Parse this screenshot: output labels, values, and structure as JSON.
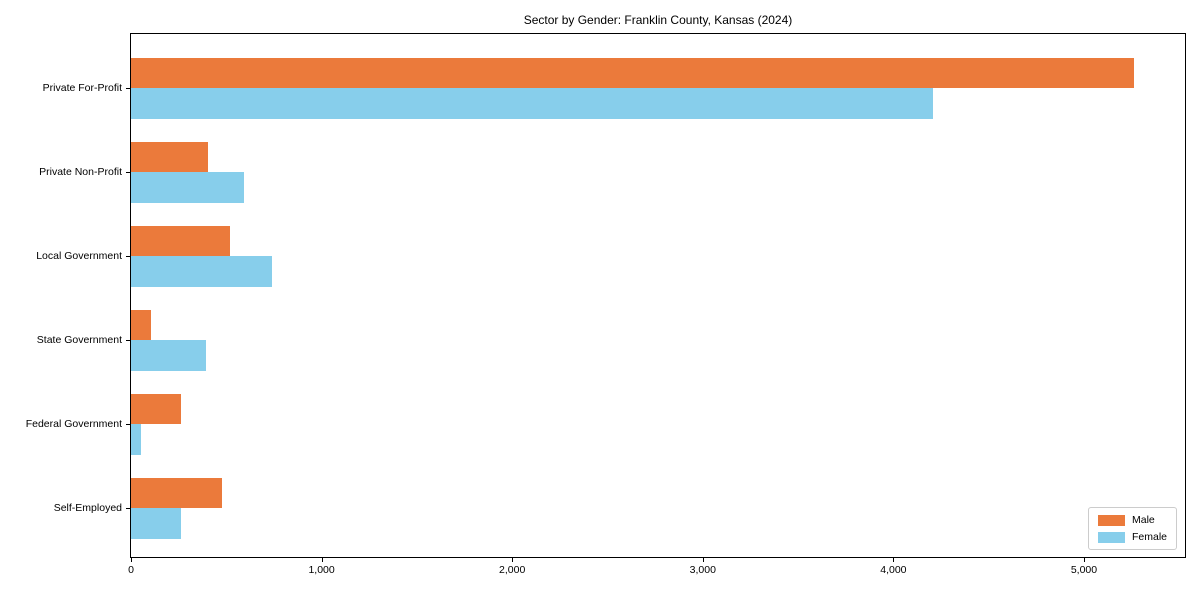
{
  "title": "Sector by Gender: Franklin County, Kansas (2024)",
  "chart_data": {
    "type": "bar",
    "orientation": "horizontal",
    "title": "Sector by Gender: Franklin County, Kansas (2024)",
    "categories": [
      "Private For-Profit",
      "Private Non-Profit",
      "Local Government",
      "State Government",
      "Federal Government",
      "Self-Employed"
    ],
    "series": [
      {
        "name": "Male",
        "color": "#EB7A3B",
        "values": [
          5265,
          405,
          520,
          105,
          260,
          475
        ]
      },
      {
        "name": "Female",
        "color": "#87CEEB",
        "values": [
          4210,
          595,
          740,
          395,
          50,
          260
        ]
      }
    ],
    "xlabel": "",
    "ylabel": "",
    "xlim": [
      0,
      5530
    ],
    "xticks": [
      0,
      1000,
      2000,
      3000,
      4000,
      5000
    ],
    "xtick_labels": [
      "0",
      "1,000",
      "2,000",
      "3,000",
      "4,000",
      "5,000"
    ],
    "grid": false,
    "legend": {
      "position": "lower right",
      "entries": [
        "Male",
        "Female"
      ]
    },
    "colors": {
      "spine": "#000000",
      "background": "#ffffff",
      "legend_border": "#cccccc"
    }
  }
}
